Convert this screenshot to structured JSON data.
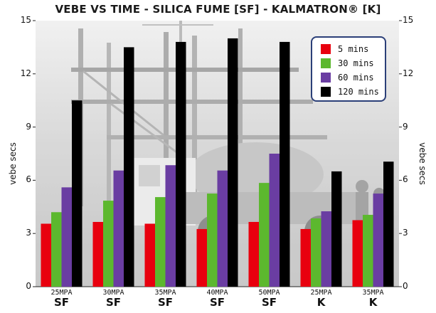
{
  "chart_data": {
    "type": "bar",
    "title": "VEBE VS TIME - SILICA FUME [SF] - KALMATRON® [K]",
    "ylabel": "vebe secs",
    "ylabel_right": "vebe secs",
    "ylim": [
      0,
      15
    ],
    "yticks": [
      "0",
      "3",
      "6",
      "9",
      "12",
      "15"
    ],
    "categories": [
      "25MPA",
      "30MPA",
      "35MPA",
      "40MPA",
      "50MPA",
      "25MPA",
      "35MPA"
    ],
    "groups": [
      "SF",
      "SF",
      "SF",
      "SF",
      "SF",
      "K",
      "K"
    ],
    "series": [
      {
        "name": "5 mins",
        "color": "#e8000e",
        "values": [
          3.55,
          3.65,
          3.55,
          3.25,
          3.65,
          3.25,
          3.75
        ]
      },
      {
        "name": "30 mins",
        "color": "#5cb82e",
        "values": [
          4.2,
          4.85,
          5.05,
          5.25,
          5.85,
          3.85,
          4.05
        ]
      },
      {
        "name": "60 mins",
        "color": "#6a3da2",
        "values": [
          5.6,
          6.55,
          6.85,
          6.55,
          7.5,
          4.25,
          5.25
        ]
      },
      {
        "name": "120 mins",
        "color": "#000000",
        "values": [
          10.5,
          13.5,
          13.8,
          14.0,
          13.8,
          6.5,
          7.05
        ]
      }
    ],
    "legend_position": "top-right",
    "grid": false,
    "background_photo": true
  }
}
